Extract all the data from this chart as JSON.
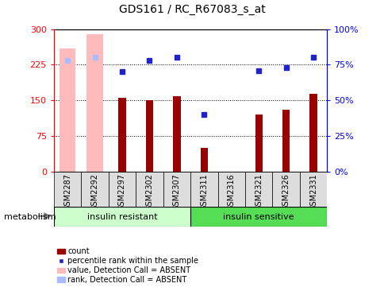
{
  "title": "GDS161 / RC_R67083_s_at",
  "samples": [
    "GSM2287",
    "GSM2292",
    "GSM2297",
    "GSM2302",
    "GSM2307",
    "GSM2311",
    "GSM2316",
    "GSM2321",
    "GSM2326",
    "GSM2331"
  ],
  "absent_indices": [
    0,
    1
  ],
  "count_values": [
    0,
    0,
    155,
    150,
    158,
    50,
    0,
    120,
    130,
    163
  ],
  "absent_bar_heights": [
    260,
    290,
    0,
    0,
    0,
    0,
    0,
    0,
    0,
    0
  ],
  "percentile_values": [
    78,
    80,
    70,
    78,
    80,
    40,
    0,
    71,
    73,
    80
  ],
  "absent_rank_values": [
    78,
    80,
    0,
    0,
    0,
    0,
    0,
    0,
    0,
    0
  ],
  "ylim_left": [
    0,
    300
  ],
  "ylim_right": [
    0,
    100
  ],
  "yticks_left": [
    0,
    75,
    150,
    225,
    300
  ],
  "yticks_right": [
    0,
    25,
    50,
    75,
    100
  ],
  "ytick_labels_right": [
    "0%",
    "25%",
    "50%",
    "75%",
    "100%"
  ],
  "bar_color_dark_red": "#990000",
  "dot_color_blue": "#2222cc",
  "absent_bar_color": "#ffbbbb",
  "absent_rank_color": "#aabbff",
  "group1_label": "insulin resistant",
  "group2_label": "insulin sensitive",
  "group1_color": "#ccffcc",
  "group2_color": "#55dd55",
  "group_label": "metabolism",
  "legend_labels": [
    "count",
    "percentile rank within the sample",
    "value, Detection Call = ABSENT",
    "rank, Detection Call = ABSENT"
  ]
}
